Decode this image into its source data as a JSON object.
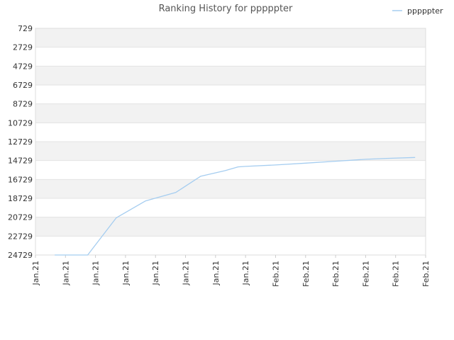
{
  "chart_data": {
    "type": "line",
    "title": "Ranking History for pppppter",
    "xlabel": "",
    "ylabel": "",
    "y_axis_inverted": true,
    "ylim": [
      729,
      24729
    ],
    "y_ticks": [
      "729",
      "2729",
      "4729",
      "6729",
      "8729",
      "10729",
      "12729",
      "14729",
      "16729",
      "18729",
      "20729",
      "22729",
      "24729"
    ],
    "x_ticks": [
      "Jan.21",
      "Jan.21",
      "Jan.21",
      "Jan.21",
      "Jan.21",
      "Jan.21",
      "Jan.21",
      "Jan.21",
      "Feb.21",
      "Feb.21",
      "Feb.21",
      "Feb.21",
      "Feb.21",
      "Feb.21"
    ],
    "grid": true,
    "band_colors": [
      "#f2f2f2",
      "#ffffff"
    ],
    "legend_position": "top-right",
    "series": [
      {
        "name": "pppppter",
        "color": "#a5cdf0",
        "x_index": [
          0.64,
          1.74,
          2.69,
          3.67,
          4.68,
          5.5,
          6.32,
          6.75,
          7.0,
          8.0,
          9.0,
          10.0,
          11.0,
          11.7,
          12.65
        ],
        "values": [
          24729,
          24729,
          20800,
          19000,
          18100,
          16400,
          15800,
          15400,
          15350,
          15200,
          15000,
          14800,
          14600,
          14500,
          14400
        ]
      }
    ]
  }
}
